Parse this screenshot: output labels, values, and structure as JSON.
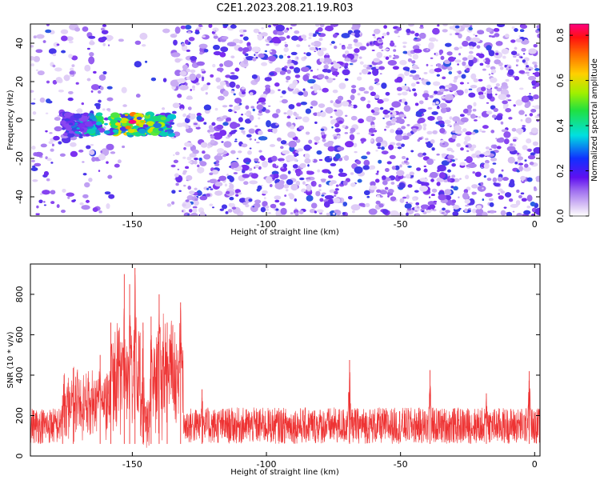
{
  "title": "C2E1.2023.208.21.19.R03",
  "colors": {
    "snr_line": "#ee3333",
    "colormap": [
      "#ffffff",
      "#dcc8f5",
      "#a070f0",
      "#7a2cf0",
      "#3a3ae8",
      "#00c8d0",
      "#20e060",
      "#b0f000",
      "#ffd000",
      "#ff8000",
      "#ff2020",
      "#ff007f"
    ]
  },
  "chart_data": [
    {
      "type": "heatmap",
      "name": "spectrogram",
      "xlabel": "Height of straight line (km)",
      "ylabel": "Frequency (Hz)",
      "xlim": [
        -188,
        2
      ],
      "ylim": [
        -50,
        50
      ],
      "xticks": [
        -150,
        -100,
        -50,
        0
      ],
      "yticks": [
        -40,
        -20,
        0,
        20,
        40
      ],
      "colorbar": {
        "label": "Normalized spectral amplitude",
        "range": [
          0.0,
          0.85
        ],
        "ticks": [
          0.0,
          0.2,
          0.4,
          0.6,
          0.8
        ]
      },
      "features": {
        "signal_band": {
          "x_range": [
            -176,
            -135
          ],
          "freq_range": [
            -8,
            3
          ],
          "peak_amplitude": 0.85,
          "peak_x": -150,
          "peak_freq": -1
        },
        "blank_regions_x": [
          [
            -157,
            -135
          ]
        ],
        "background_noise_amplitude": [
          0.05,
          0.25
        ]
      }
    },
    {
      "type": "line",
      "name": "snr",
      "xlabel": "Height of straight line (km)",
      "ylabel": "SNR (10 * v/v)",
      "xlim": [
        -188,
        2
      ],
      "ylim": [
        0,
        950
      ],
      "xticks": [
        -150,
        -100,
        -50,
        0
      ],
      "yticks": [
        0,
        200,
        400,
        600,
        800
      ],
      "series": [
        {
          "baseline": [
            60,
            240
          ],
          "peaks": [
            {
              "x": -176,
              "y": 300
            },
            {
              "x": -172,
              "y": 435
            },
            {
              "x": -162,
              "y": 500
            },
            {
              "x": -158,
              "y": 660
            },
            {
              "x": -153,
              "y": 900
            },
            {
              "x": -151,
              "y": 850
            },
            {
              "x": -149,
              "y": 930
            },
            {
              "x": -146,
              "y": 660
            },
            {
              "x": -143,
              "y": 690
            },
            {
              "x": -140,
              "y": 800
            },
            {
              "x": -137,
              "y": 660
            },
            {
              "x": -132,
              "y": 760
            },
            {
              "x": -124,
              "y": 330
            },
            {
              "x": -69,
              "y": 475
            },
            {
              "x": -39,
              "y": 425
            },
            {
              "x": -18,
              "y": 310
            },
            {
              "x": -2,
              "y": 420
            }
          ]
        }
      ]
    }
  ]
}
